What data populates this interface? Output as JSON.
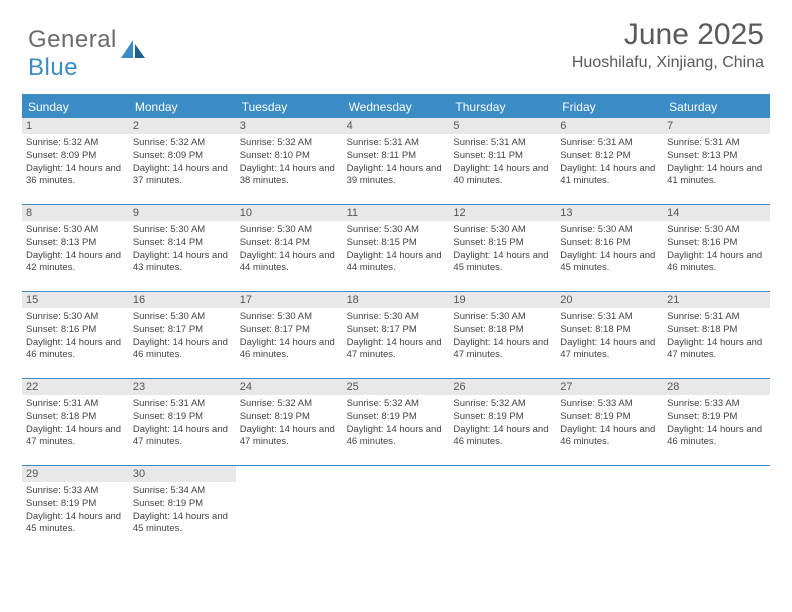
{
  "logo": {
    "text1": "General",
    "text2": "Blue"
  },
  "title": "June 2025",
  "location": "Huoshilafu, Xinjiang, China",
  "colors": {
    "accent": "#3b8bc4",
    "header_bg": "#3b8bc4",
    "daynum_bg": "#e8e8e8",
    "text": "#444444",
    "title_text": "#5a5a5a"
  },
  "day_names": [
    "Sunday",
    "Monday",
    "Tuesday",
    "Wednesday",
    "Thursday",
    "Friday",
    "Saturday"
  ],
  "days": [
    {
      "n": "1",
      "sr": "5:32 AM",
      "ss": "8:09 PM",
      "dl": "14 hours and 36 minutes."
    },
    {
      "n": "2",
      "sr": "5:32 AM",
      "ss": "8:09 PM",
      "dl": "14 hours and 37 minutes."
    },
    {
      "n": "3",
      "sr": "5:32 AM",
      "ss": "8:10 PM",
      "dl": "14 hours and 38 minutes."
    },
    {
      "n": "4",
      "sr": "5:31 AM",
      "ss": "8:11 PM",
      "dl": "14 hours and 39 minutes."
    },
    {
      "n": "5",
      "sr": "5:31 AM",
      "ss": "8:11 PM",
      "dl": "14 hours and 40 minutes."
    },
    {
      "n": "6",
      "sr": "5:31 AM",
      "ss": "8:12 PM",
      "dl": "14 hours and 41 minutes."
    },
    {
      "n": "7",
      "sr": "5:31 AM",
      "ss": "8:13 PM",
      "dl": "14 hours and 41 minutes."
    },
    {
      "n": "8",
      "sr": "5:30 AM",
      "ss": "8:13 PM",
      "dl": "14 hours and 42 minutes."
    },
    {
      "n": "9",
      "sr": "5:30 AM",
      "ss": "8:14 PM",
      "dl": "14 hours and 43 minutes."
    },
    {
      "n": "10",
      "sr": "5:30 AM",
      "ss": "8:14 PM",
      "dl": "14 hours and 44 minutes."
    },
    {
      "n": "11",
      "sr": "5:30 AM",
      "ss": "8:15 PM",
      "dl": "14 hours and 44 minutes."
    },
    {
      "n": "12",
      "sr": "5:30 AM",
      "ss": "8:15 PM",
      "dl": "14 hours and 45 minutes."
    },
    {
      "n": "13",
      "sr": "5:30 AM",
      "ss": "8:16 PM",
      "dl": "14 hours and 45 minutes."
    },
    {
      "n": "14",
      "sr": "5:30 AM",
      "ss": "8:16 PM",
      "dl": "14 hours and 46 minutes."
    },
    {
      "n": "15",
      "sr": "5:30 AM",
      "ss": "8:16 PM",
      "dl": "14 hours and 46 minutes."
    },
    {
      "n": "16",
      "sr": "5:30 AM",
      "ss": "8:17 PM",
      "dl": "14 hours and 46 minutes."
    },
    {
      "n": "17",
      "sr": "5:30 AM",
      "ss": "8:17 PM",
      "dl": "14 hours and 46 minutes."
    },
    {
      "n": "18",
      "sr": "5:30 AM",
      "ss": "8:17 PM",
      "dl": "14 hours and 47 minutes."
    },
    {
      "n": "19",
      "sr": "5:30 AM",
      "ss": "8:18 PM",
      "dl": "14 hours and 47 minutes."
    },
    {
      "n": "20",
      "sr": "5:31 AM",
      "ss": "8:18 PM",
      "dl": "14 hours and 47 minutes."
    },
    {
      "n": "21",
      "sr": "5:31 AM",
      "ss": "8:18 PM",
      "dl": "14 hours and 47 minutes."
    },
    {
      "n": "22",
      "sr": "5:31 AM",
      "ss": "8:18 PM",
      "dl": "14 hours and 47 minutes."
    },
    {
      "n": "23",
      "sr": "5:31 AM",
      "ss": "8:19 PM",
      "dl": "14 hours and 47 minutes."
    },
    {
      "n": "24",
      "sr": "5:32 AM",
      "ss": "8:19 PM",
      "dl": "14 hours and 47 minutes."
    },
    {
      "n": "25",
      "sr": "5:32 AM",
      "ss": "8:19 PM",
      "dl": "14 hours and 46 minutes."
    },
    {
      "n": "26",
      "sr": "5:32 AM",
      "ss": "8:19 PM",
      "dl": "14 hours and 46 minutes."
    },
    {
      "n": "27",
      "sr": "5:33 AM",
      "ss": "8:19 PM",
      "dl": "14 hours and 46 minutes."
    },
    {
      "n": "28",
      "sr": "5:33 AM",
      "ss": "8:19 PM",
      "dl": "14 hours and 46 minutes."
    },
    {
      "n": "29",
      "sr": "5:33 AM",
      "ss": "8:19 PM",
      "dl": "14 hours and 45 minutes."
    },
    {
      "n": "30",
      "sr": "5:34 AM",
      "ss": "8:19 PM",
      "dl": "14 hours and 45 minutes."
    }
  ],
  "labels": {
    "sunrise": "Sunrise:",
    "sunset": "Sunset:",
    "daylight": "Daylight:"
  },
  "layout": {
    "cols": 7,
    "first_day_offset": 0,
    "total_cells": 35
  }
}
